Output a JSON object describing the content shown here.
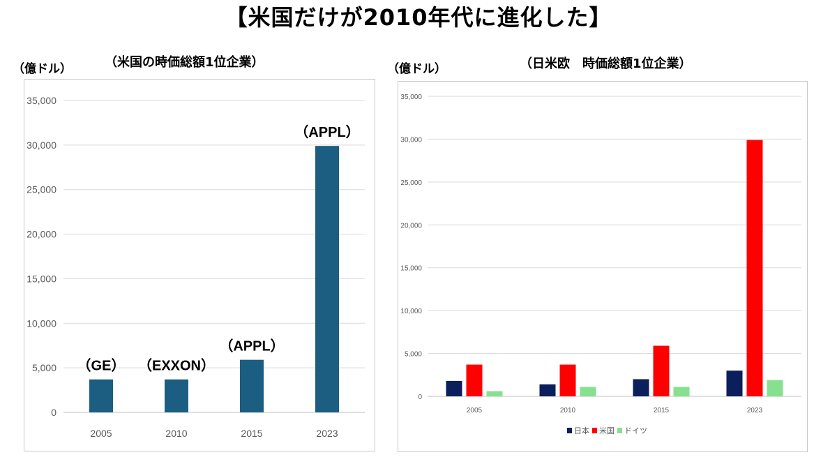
{
  "page": {
    "title": "【米国だけが2010年代に進化した】"
  },
  "chart_data": [
    {
      "type": "bar",
      "title": "（米国の時価総額1位企業）",
      "ylabel": "（億ドル）",
      "xlabel": "",
      "categories": [
        "2005",
        "2010",
        "2015",
        "2023"
      ],
      "values": [
        3700,
        3700,
        5900,
        29900
      ],
      "bar_labels": [
        "（GE）",
        "（EXXON）",
        "（APPL）",
        "（APPL）"
      ],
      "yticks": [
        "0",
        "5,000",
        "10,000",
        "15,000",
        "20,000",
        "25,000",
        "30,000",
        "35,000"
      ],
      "ylim": [
        0,
        35000
      ],
      "grid": true,
      "colors": {
        "bar": "#1b5e82",
        "grid": "#d9d9d9",
        "tick": "#595959"
      }
    },
    {
      "type": "bar",
      "title": "（日米欧　時価総額1位企業）",
      "ylabel": "（億ドル）",
      "xlabel": "",
      "categories": [
        "2005",
        "2010",
        "2015",
        "2023"
      ],
      "series": [
        {
          "name": "日本",
          "values": [
            1800,
            1400,
            2000,
            3000
          ],
          "color": "#0b1f5c"
        },
        {
          "name": "米国",
          "values": [
            3700,
            3700,
            5900,
            29900
          ],
          "color": "#ff0000"
        },
        {
          "name": "ドイツ",
          "values": [
            600,
            1100,
            1100,
            1900
          ],
          "color": "#86e08f"
        }
      ],
      "yticks": [
        "0",
        "5,000",
        "10,000",
        "15,000",
        "20,000",
        "25,000",
        "30,000",
        "35,000"
      ],
      "ylim": [
        0,
        35000
      ],
      "grid": true,
      "legend": "bottom-center",
      "colors": {
        "grid": "#d9d9d9",
        "tick": "#595959"
      }
    }
  ]
}
